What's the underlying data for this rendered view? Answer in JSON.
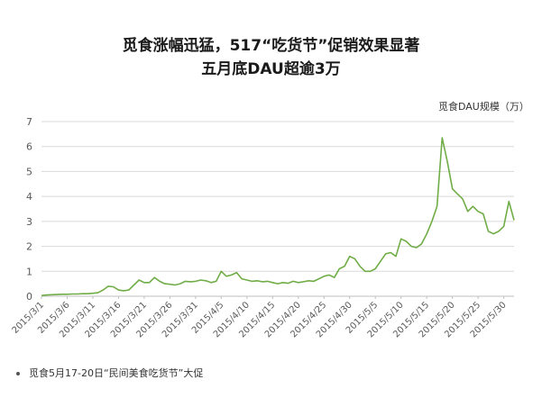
{
  "titles": {
    "line1": "觅食涨幅迅猛，517“吃货节”促销效果显著",
    "line2": "五月底DAU超逾3万"
  },
  "unit_label": "觅食DAU规模（万）",
  "note": "觅食5月17-20日“民间美食吃货节”大促",
  "colors": {
    "line": "#70ad47",
    "grid": "#d9d9d9",
    "axis": "#bfbfbf",
    "text": "#595959"
  },
  "chart_data": {
    "type": "line",
    "ylim": [
      0,
      7
    ],
    "yticks": [
      "0",
      "1",
      "2",
      "3",
      "4",
      "5",
      "6",
      "7"
    ],
    "xticks": [
      {
        "i": 0,
        "label": "2015/3/1"
      },
      {
        "i": 5,
        "label": "2015/3/6"
      },
      {
        "i": 10,
        "label": "2015/3/11"
      },
      {
        "i": 15,
        "label": "2015/3/16"
      },
      {
        "i": 20,
        "label": "2015/3/21"
      },
      {
        "i": 25,
        "label": "2015/3/26"
      },
      {
        "i": 30,
        "label": "2015/3/31"
      },
      {
        "i": 35,
        "label": "2015/4/5"
      },
      {
        "i": 40,
        "label": "2015/4/10"
      },
      {
        "i": 45,
        "label": "2015/4/15"
      },
      {
        "i": 50,
        "label": "2015/4/20"
      },
      {
        "i": 55,
        "label": "2015/4/25"
      },
      {
        "i": 60,
        "label": "2015/4/30"
      },
      {
        "i": 65,
        "label": "2015/5/5"
      },
      {
        "i": 70,
        "label": "2015/5/10"
      },
      {
        "i": 75,
        "label": "2015/5/15"
      },
      {
        "i": 80,
        "label": "2015/5/20"
      },
      {
        "i": 85,
        "label": "2015/5/25"
      },
      {
        "i": 90,
        "label": "2015/5/30"
      }
    ],
    "x_start": "2015/3/1",
    "x_end": "2015/5/31",
    "grid": true,
    "series": [
      {
        "values": [
          0.03,
          0.05,
          0.06,
          0.07,
          0.08,
          0.08,
          0.09,
          0.09,
          0.1,
          0.1,
          0.12,
          0.14,
          0.25,
          0.4,
          0.38,
          0.25,
          0.22,
          0.25,
          0.45,
          0.65,
          0.55,
          0.55,
          0.75,
          0.6,
          0.5,
          0.48,
          0.45,
          0.5,
          0.6,
          0.58,
          0.6,
          0.65,
          0.62,
          0.55,
          0.6,
          1.0,
          0.8,
          0.85,
          0.95,
          0.7,
          0.65,
          0.6,
          0.62,
          0.58,
          0.6,
          0.55,
          0.5,
          0.55,
          0.52,
          0.6,
          0.55,
          0.58,
          0.62,
          0.6,
          0.7,
          0.8,
          0.85,
          0.75,
          1.1,
          1.2,
          1.6,
          1.5,
          1.2,
          1.0,
          1.0,
          1.1,
          1.4,
          1.7,
          1.75,
          1.6,
          2.3,
          2.2,
          2.0,
          1.95,
          2.1,
          2.5,
          3.0,
          3.6,
          6.35,
          5.4,
          4.3,
          4.1,
          3.9,
          3.4,
          3.6,
          3.4,
          3.3,
          2.6,
          2.5,
          2.6,
          2.8,
          3.8,
          3.05
        ]
      }
    ]
  }
}
